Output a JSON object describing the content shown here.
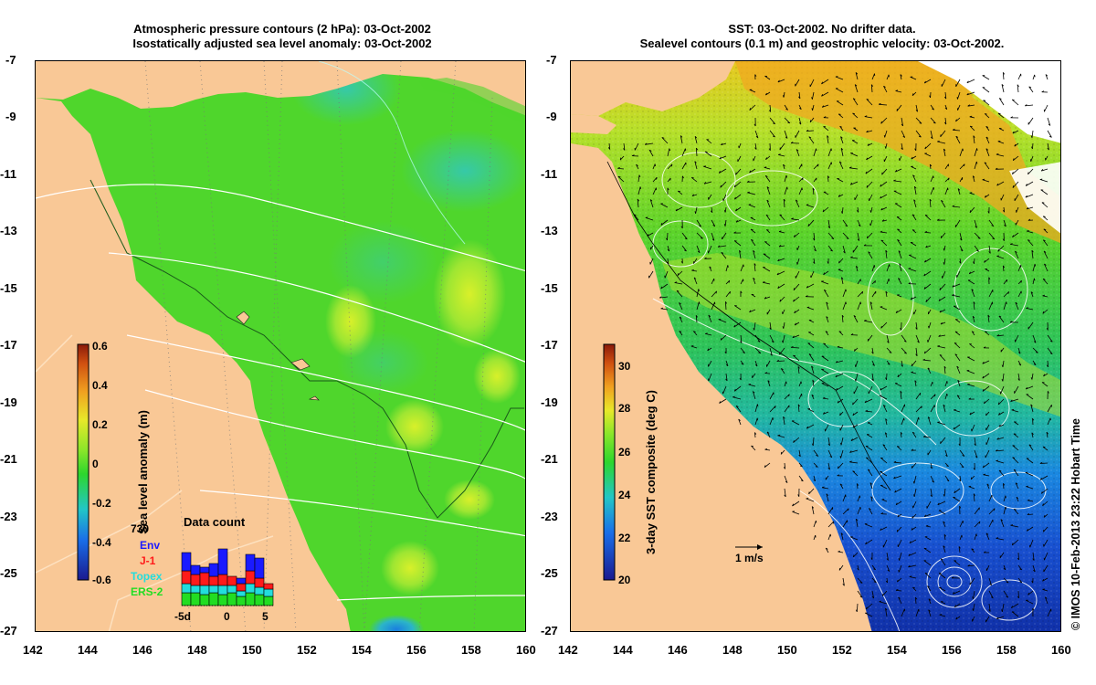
{
  "left_panel": {
    "title_line1": "Atmospheric pressure contours (2 hPa): 03-Oct-2002",
    "title_line2": "Isostatically adjusted sea level anomaly: 03-Oct-2002",
    "colorbar": {
      "label": "Sea level anomaly (m)",
      "ticks": [
        "0.6",
        "0.4",
        "0.2",
        "0",
        "-0.2",
        "-0.4",
        "-0.6"
      ]
    },
    "data_count": {
      "title": "Data count",
      "max_label": "730",
      "legend": [
        {
          "name": "Env",
          "color": "#1a1aff"
        },
        {
          "name": "J-1",
          "color": "#ff1a1a"
        },
        {
          "name": "Topex",
          "color": "#22dddd"
        },
        {
          "name": "ERS-2",
          "color": "#22dd22"
        }
      ],
      "x_labels": [
        "-5d",
        "0",
        "5"
      ]
    }
  },
  "right_panel": {
    "title_line1": "SST: 03-Oct-2002. No drifter data.",
    "title_line2": "Sealevel contours (0.1 m) and geostrophic velocity: 03-Oct-2002.",
    "colorbar": {
      "label": "3-day SST composite (deg C)",
      "ticks": [
        "30",
        "28",
        "26",
        "24",
        "22",
        "20"
      ]
    },
    "velocity_scale": "1 m/s"
  },
  "axes": {
    "x_ticks": [
      "142",
      "144",
      "146",
      "148",
      "150",
      "152",
      "154",
      "156",
      "158",
      "160"
    ],
    "y_ticks": [
      "-7",
      "-9",
      "-11",
      "-13",
      "-15",
      "-17",
      "-19",
      "-21",
      "-23",
      "-25",
      "-27"
    ]
  },
  "credit": "© IMOS 10-Feb-2013 23:22 Hobart Time",
  "colors": {
    "land": "#f9c896",
    "sla_ocean": "#4fd62c",
    "sst_warm": "#f0a020",
    "sst_cool": "#1860d8"
  }
}
